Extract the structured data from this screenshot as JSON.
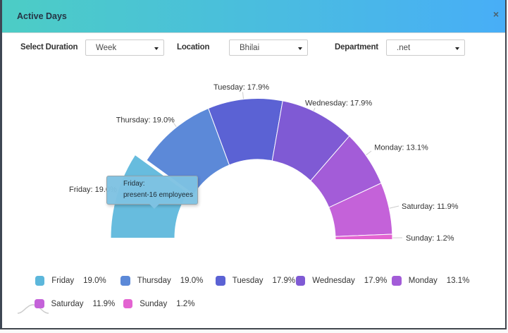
{
  "window": {
    "title": "Active Days",
    "close_label": "×"
  },
  "theme": {
    "header_gradient_left": "#4ccdc5",
    "header_gradient_right": "#48aef7",
    "border_color": "#3e4754",
    "label_color": "#333333",
    "connector_color": "#cccccc"
  },
  "filters": [
    {
      "label": "Select Duration",
      "value": "Week"
    },
    {
      "label": "Location",
      "value": "Bhilai"
    },
    {
      "label": "Department",
      "value": ".net"
    }
  ],
  "chart_data": {
    "type": "pie",
    "variant": "half-donut",
    "unit": "%",
    "points": [
      {
        "label": "Friday",
        "value": 19.0,
        "display": "19.0%",
        "color": "#5cb7db",
        "selected": true
      },
      {
        "label": "Thursday",
        "value": 19.0,
        "display": "19.0%",
        "color": "#5c89d8"
      },
      {
        "label": "Tuesday",
        "value": 17.9,
        "display": "17.9%",
        "color": "#5b62d4"
      },
      {
        "label": "Wednesday",
        "value": 17.9,
        "display": "17.9%",
        "color": "#7f5ad4"
      },
      {
        "label": "Monday",
        "value": 13.1,
        "display": "13.1%",
        "color": "#a35cd8"
      },
      {
        "label": "Saturday",
        "value": 11.9,
        "display": "11.9%",
        "color": "#c462d9"
      },
      {
        "label": "Sunday",
        "value": 1.2,
        "display": "1.2%",
        "color": "#e363d1"
      }
    ],
    "legend_position": "bottom-left"
  },
  "tooltip": {
    "line1": "Friday:",
    "line2": "present-16 employees"
  }
}
